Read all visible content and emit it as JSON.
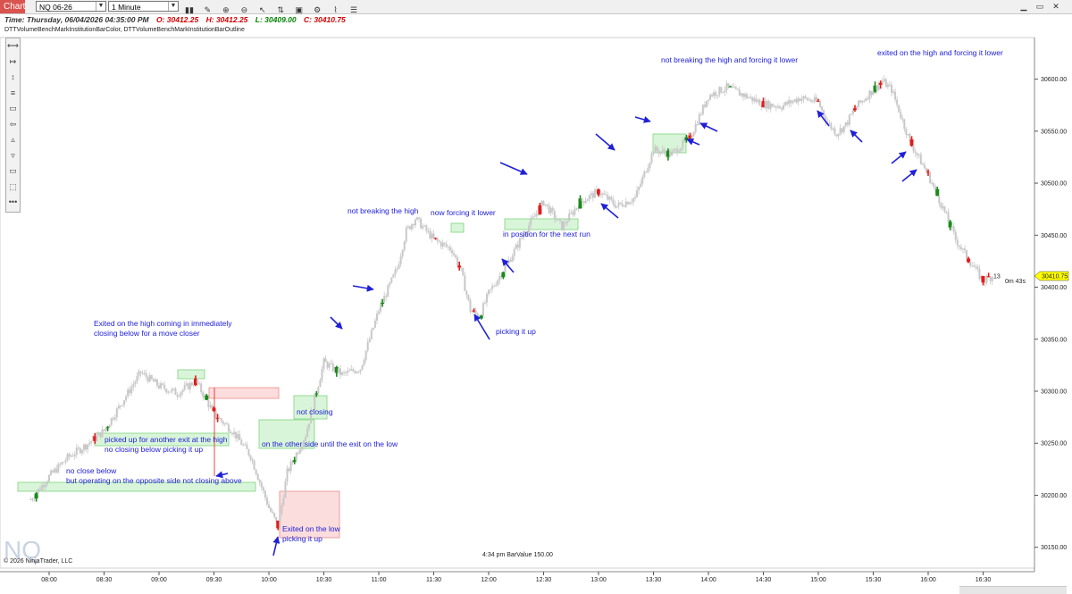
{
  "toolbar": {
    "chart_tab": "Chart",
    "instrument": "NQ 06-26",
    "interval": "1 Minute",
    "icons": [
      "bar-style-icon",
      "drawing-pen-icon",
      "zoom-in-icon",
      "zoom-out-icon",
      "pointer-icon",
      "chart-trader-icon",
      "data-box-icon",
      "strategies-icon",
      "indicators-icon",
      "properties-icon"
    ],
    "window_buttons": [
      "minimize-icon",
      "maximize-icon",
      "close-icon"
    ]
  },
  "info": {
    "time": "Time: Thursday, 06/04/2026 04:35:00 PM",
    "open": "O: 30412.25",
    "high": "H: 30412.25",
    "low": "L: 30409.00",
    "close": "C: 30410.75",
    "open_color": "#d00000",
    "high_color": "#d00000",
    "low_color": "#008000",
    "close_color": "#d00000"
  },
  "indicators_label": "DTTVolumeBenchMarkInstitutionBarColor, DTTVolumeBenchMarkInstitutionBarOutline",
  "drawing_tools": [
    "horizontal-line-icon",
    "ray-icon",
    "vertical-line-icon",
    "fib-icon",
    "rectangle-icon",
    "arrow-line-icon",
    "triangle-up-icon",
    "triangle-down-icon",
    "region-icon",
    "region-highlight-icon",
    "more-tools-icon"
  ],
  "footer": {
    "copyright": "© 2026 NinjaTrader, LLC",
    "bar_value": "4:34 pm BarValue 150.00",
    "watermark": "NQ"
  },
  "price_marker": {
    "label": "30410.75",
    "bars_left": "13",
    "timer": "0m 43s"
  },
  "colors": {
    "up_bar": "#1a8a1a",
    "down_bar": "#e31b1b",
    "neutral_bar": "#c8c8c8",
    "annotation": "#2020d8",
    "price_marker_bg": "#ffff00"
  },
  "chart_data": {
    "type": "candlestick",
    "x_ticks": [
      "08:00",
      "08:30",
      "09:00",
      "09:30",
      "10:00",
      "10:30",
      "11:00",
      "11:30",
      "12:00",
      "12:30",
      "13:00",
      "13:30",
      "14:00",
      "14:30",
      "15:00",
      "15:30",
      "16:00",
      "16:30"
    ],
    "y_ticks": [
      30150.0,
      30200.0,
      30250.0,
      30300.0,
      30350.0,
      30400.0,
      30450.0,
      30500.0,
      30550.0,
      30600.0
    ],
    "ylim": [
      30130,
      30640
    ],
    "close_path": [
      [
        "07:50",
        30196
      ],
      [
        "08:00",
        30218
      ],
      [
        "08:10",
        30236
      ],
      [
        "08:20",
        30248
      ],
      [
        "08:30",
        30262
      ],
      [
        "08:40",
        30290
      ],
      [
        "08:50",
        30318
      ],
      [
        "09:00",
        30305
      ],
      [
        "09:10",
        30298
      ],
      [
        "09:20",
        30310
      ],
      [
        "09:30",
        30278
      ],
      [
        "09:40",
        30262
      ],
      [
        "09:50",
        30238
      ],
      [
        "10:00",
        30188
      ],
      [
        "10:05",
        30170
      ],
      [
        "10:10",
        30222
      ],
      [
        "10:20",
        30258
      ],
      [
        "10:30",
        30328
      ],
      [
        "10:40",
        30316
      ],
      [
        "10:50",
        30322
      ],
      [
        "11:00",
        30378
      ],
      [
        "11:10",
        30418
      ],
      [
        "11:15",
        30454
      ],
      [
        "11:20",
        30466
      ],
      [
        "11:30",
        30446
      ],
      [
        "11:40",
        30436
      ],
      [
        "11:45",
        30415
      ],
      [
        "11:50",
        30378
      ],
      [
        "11:55",
        30372
      ],
      [
        "12:00",
        30394
      ],
      [
        "12:10",
        30422
      ],
      [
        "12:20",
        30454
      ],
      [
        "12:30",
        30482
      ],
      [
        "12:40",
        30458
      ],
      [
        "12:50",
        30482
      ],
      [
        "13:00",
        30492
      ],
      [
        "13:10",
        30478
      ],
      [
        "13:20",
        30486
      ],
      [
        "13:30",
        30532
      ],
      [
        "13:40",
        30528
      ],
      [
        "13:50",
        30544
      ],
      [
        "14:00",
        30584
      ],
      [
        "14:10",
        30592
      ],
      [
        "14:20",
        30584
      ],
      [
        "14:30",
        30576
      ],
      [
        "14:40",
        30574
      ],
      [
        "14:50",
        30582
      ],
      [
        "15:00",
        30578
      ],
      [
        "15:05",
        30558
      ],
      [
        "15:10",
        30548
      ],
      [
        "15:15",
        30556
      ],
      [
        "15:20",
        30572
      ],
      [
        "15:30",
        30590
      ],
      [
        "15:35",
        30598
      ],
      [
        "15:40",
        30590
      ],
      [
        "15:50",
        30540
      ],
      [
        "16:00",
        30508
      ],
      [
        "16:05",
        30488
      ],
      [
        "16:10",
        30468
      ],
      [
        "16:15",
        30446
      ],
      [
        "16:20",
        30432
      ],
      [
        "16:30",
        30406
      ],
      [
        "16:35",
        30410.75
      ]
    ],
    "last_price": 30410.75
  },
  "annotations": [
    {
      "id": "not-breaking-high-1",
      "lines": [
        "not breaking the high"
      ]
    },
    {
      "id": "now-forcing-lower",
      "lines": [
        "now forcing it lower"
      ]
    },
    {
      "id": "in-position-next-run",
      "lines": [
        "in position for the next run"
      ]
    },
    {
      "id": "picking-it-up-1",
      "lines": [
        "picking it up"
      ]
    },
    {
      "id": "not-breaking-high-2",
      "lines": [
        "not breaking the high and forcing it lower"
      ]
    },
    {
      "id": "exited-high-forcing-lower",
      "lines": [
        "exited on the high and forcing it lower"
      ]
    },
    {
      "id": "exited-high-closer",
      "lines": [
        "Exited on the high coming in immediately",
        "closing below for a move closer"
      ]
    },
    {
      "id": "picked-up-another-exit",
      "lines": [
        "picked up for another exit at the high",
        "no closing below picking it up"
      ]
    },
    {
      "id": "no-close-below",
      "lines": [
        "no close below",
        "but operating on the opposite side not closing above"
      ]
    },
    {
      "id": "not-closing",
      "lines": [
        "not closing"
      ]
    },
    {
      "id": "other-side-until-exit",
      "lines": [
        "on the other side until the exit on the low"
      ]
    },
    {
      "id": "exited-low-picking-up",
      "lines": [
        "Exited on the low",
        "picking it up"
      ]
    }
  ]
}
